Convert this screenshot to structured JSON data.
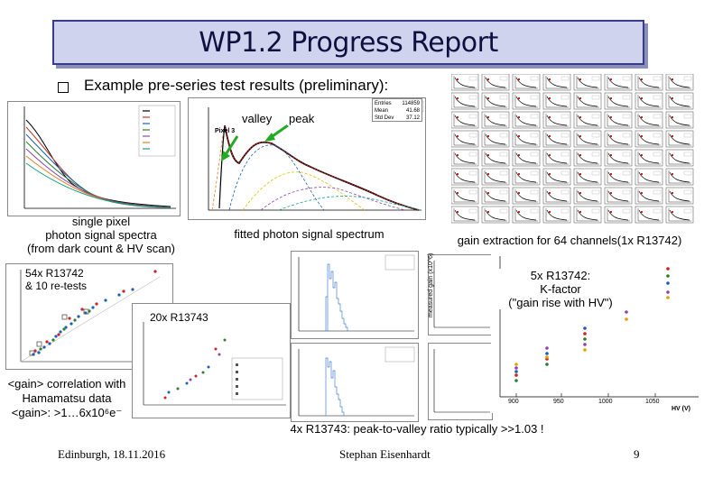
{
  "title": "WP1.2 Progress Report",
  "bullet": "Example pre-series test results (preliminary):",
  "spectra_caption": [
    "single pixel",
    "photon signal spectra",
    "(from dark count & HV scan)"
  ],
  "fit_labels": {
    "valley": "valley",
    "peak": "peak"
  },
  "fitted_caption": "fitted photon signal spectrum",
  "pixel_label": "Pixel 3",
  "stats": {
    "r1": [
      "Entries",
      "114859"
    ],
    "r2": [
      "Mean",
      "41.68"
    ],
    "r3": [
      "Std Dev",
      "37.12"
    ]
  },
  "gain_caption": "gain extraction for 64 channels(1x R13742)",
  "label_54x": [
    "54x R13742",
    "& 10 re-tests"
  ],
  "label_20x": "20x R13743",
  "correlation": [
    "<gain> correlation with",
    "Hamamatsu data",
    "<gain>: >1…6x10⁶e⁻"
  ],
  "label_5x": [
    "5x R13742:",
    "K-factor",
    "(\"gain rise with HV\")"
  ],
  "kfactor_xticks": [
    "900",
    "950",
    "1000",
    "1050"
  ],
  "kfactor_xlabel": "HV (V)",
  "kfactor_ylabel": "measured gain (x10^6)",
  "peak_valley": "4x R13743: peak-to-valley ratio typically >>1.03 !",
  "footer": {
    "location": "Edinburgh, 18.11.2016",
    "author": "Stephan Eisenhardt",
    "page": "9"
  },
  "colors": {
    "title_bg": "#cfd3ee",
    "title_border": "#3a3a8c",
    "fit_red": "#d02020",
    "arrow_green": "#22aa22"
  }
}
